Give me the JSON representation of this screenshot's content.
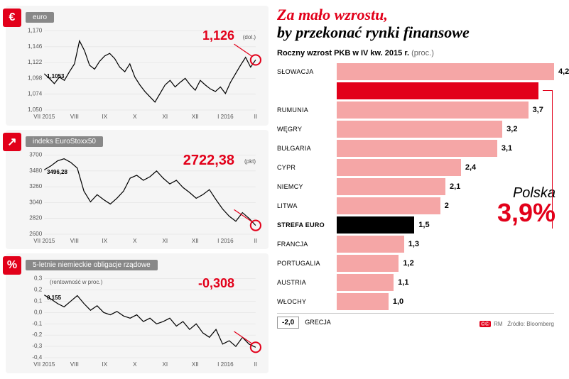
{
  "headline": {
    "red": "Za mało wzrostu,",
    "black": "by przekonać rynki finansowe"
  },
  "subhead": {
    "main": "Roczny wzrost PKB w IV kw. 2015 r.",
    "unit": "(proc.)"
  },
  "colors": {
    "accent": "#e2001a",
    "bar_default": "#f5a6a6",
    "bar_poland": "#e2001a",
    "bar_euro": "#000000",
    "card_bg": "#f5f5f5",
    "grid": "#dddddd",
    "text": "#000000",
    "muted": "#666666"
  },
  "charts": [
    {
      "id": "euro",
      "icon": "€",
      "title": "euro",
      "unit": "(dol.)",
      "ylim": [
        1050,
        1170
      ],
      "yticks": [
        1050,
        1074,
        1098,
        1122,
        1146,
        1170
      ],
      "ytick_labels": [
        "1,050",
        "1,074",
        "1,098",
        "1,122",
        "1,146",
        "1,170"
      ],
      "xticks": [
        "VII 2015",
        "VIII",
        "IX",
        "X",
        "XI",
        "XII",
        "I 2016",
        "II"
      ],
      "start_label": "1,1053",
      "callout": "1,126",
      "callout_fontsize": 18,
      "series": [
        1105,
        1098,
        1090,
        1100,
        1095,
        1108,
        1120,
        1155,
        1140,
        1118,
        1112,
        1124,
        1132,
        1136,
        1128,
        1115,
        1108,
        1120,
        1100,
        1088,
        1078,
        1070,
        1062,
        1075,
        1088,
        1095,
        1085,
        1092,
        1098,
        1088,
        1080,
        1095,
        1088,
        1082,
        1078,
        1085,
        1075,
        1092,
        1105,
        1118,
        1130,
        1115,
        1126
      ]
    },
    {
      "id": "stoxx",
      "icon": "↗",
      "title": "indeks EuroStoxx50",
      "unit": "(pkt)",
      "ylim": [
        2600,
        3700
      ],
      "yticks": [
        2600,
        2820,
        3040,
        3260,
        3480,
        3700
      ],
      "ytick_labels": [
        "2600",
        "2820",
        "3040",
        "3260",
        "3480",
        "3700"
      ],
      "xticks": [
        "VII 2015",
        "VIII",
        "IX",
        "X",
        "XI",
        "XII",
        "I 2016",
        "II"
      ],
      "start_label": "3496,28",
      "callout": "2722,38",
      "callout_fontsize": 20,
      "series": [
        3496,
        3550,
        3620,
        3650,
        3600,
        3520,
        3200,
        3050,
        3150,
        3080,
        3020,
        3100,
        3200,
        3380,
        3420,
        3350,
        3400,
        3480,
        3380,
        3300,
        3350,
        3250,
        3180,
        3100,
        3150,
        3220,
        3080,
        2950,
        2850,
        2780,
        2900,
        2820,
        2722
      ]
    },
    {
      "id": "bonds",
      "icon": "%",
      "title": "5-letnie niemieckie obligacje rządowe",
      "unit": "(rentowność w proc.)",
      "unit_inline": true,
      "ylim": [
        -0.4,
        0.3
      ],
      "yticks": [
        -0.4,
        -0.3,
        -0.2,
        -0.1,
        0.0,
        0.1,
        0.2,
        0.3
      ],
      "ytick_labels": [
        "-0,4",
        "-0,3",
        "-0,2",
        "-0,1",
        "0,0",
        "0,1",
        "0,2",
        "0,3"
      ],
      "xticks": [
        "VII 2015",
        "VIII",
        "IX",
        "X",
        "XI",
        "XII",
        "I 2016",
        "II"
      ],
      "start_label": "0,155",
      "callout": "-0,308",
      "callout_fontsize": 18,
      "series": [
        0.155,
        0.12,
        0.08,
        0.05,
        0.1,
        0.15,
        0.08,
        0.02,
        0.06,
        0.0,
        -0.02,
        0.01,
        -0.03,
        -0.05,
        -0.02,
        -0.08,
        -0.05,
        -0.1,
        -0.08,
        -0.05,
        -0.12,
        -0.08,
        -0.15,
        -0.1,
        -0.18,
        -0.22,
        -0.15,
        -0.28,
        -0.25,
        -0.3,
        -0.22,
        -0.28,
        -0.308
      ]
    }
  ],
  "bars": {
    "max": 4.2,
    "items": [
      {
        "label": "SŁOWACJA",
        "value": 4.2,
        "value_text": "4,2",
        "special": null
      },
      {
        "label": "",
        "value": 3.9,
        "value_text": "",
        "special": "poland"
      },
      {
        "label": "RUMUNIA",
        "value": 3.7,
        "value_text": "3,7",
        "special": null
      },
      {
        "label": "WĘGRY",
        "value": 3.2,
        "value_text": "3,2",
        "special": null
      },
      {
        "label": "BUŁGARIA",
        "value": 3.1,
        "value_text": "3,1",
        "special": null
      },
      {
        "label": "CYPR",
        "value": 2.4,
        "value_text": "2,4",
        "special": null
      },
      {
        "label": "NIEMCY",
        "value": 2.1,
        "value_text": "2,1",
        "special": null
      },
      {
        "label": "LITWA",
        "value": 2.0,
        "value_text": "2",
        "special": null
      },
      {
        "label": "STREFA EURO",
        "value": 1.5,
        "value_text": "1,5",
        "special": "euro"
      },
      {
        "label": "FRANCJA",
        "value": 1.3,
        "value_text": "1,3",
        "special": null
      },
      {
        "label": "PORTUGALIA",
        "value": 1.2,
        "value_text": "1,2",
        "special": null
      },
      {
        "label": "AUSTRIA",
        "value": 1.1,
        "value_text": "1,1",
        "special": null
      },
      {
        "label": "WŁOCHY",
        "value": 1.0,
        "value_text": "1,0",
        "special": null
      }
    ]
  },
  "greece": {
    "value": "-2,0",
    "label": "GRECJA"
  },
  "poland": {
    "name": "Polska",
    "value": "3,9%"
  },
  "source": {
    "author": "RM",
    "text": "Źródło: Bloomberg",
    "cc": "©©"
  }
}
